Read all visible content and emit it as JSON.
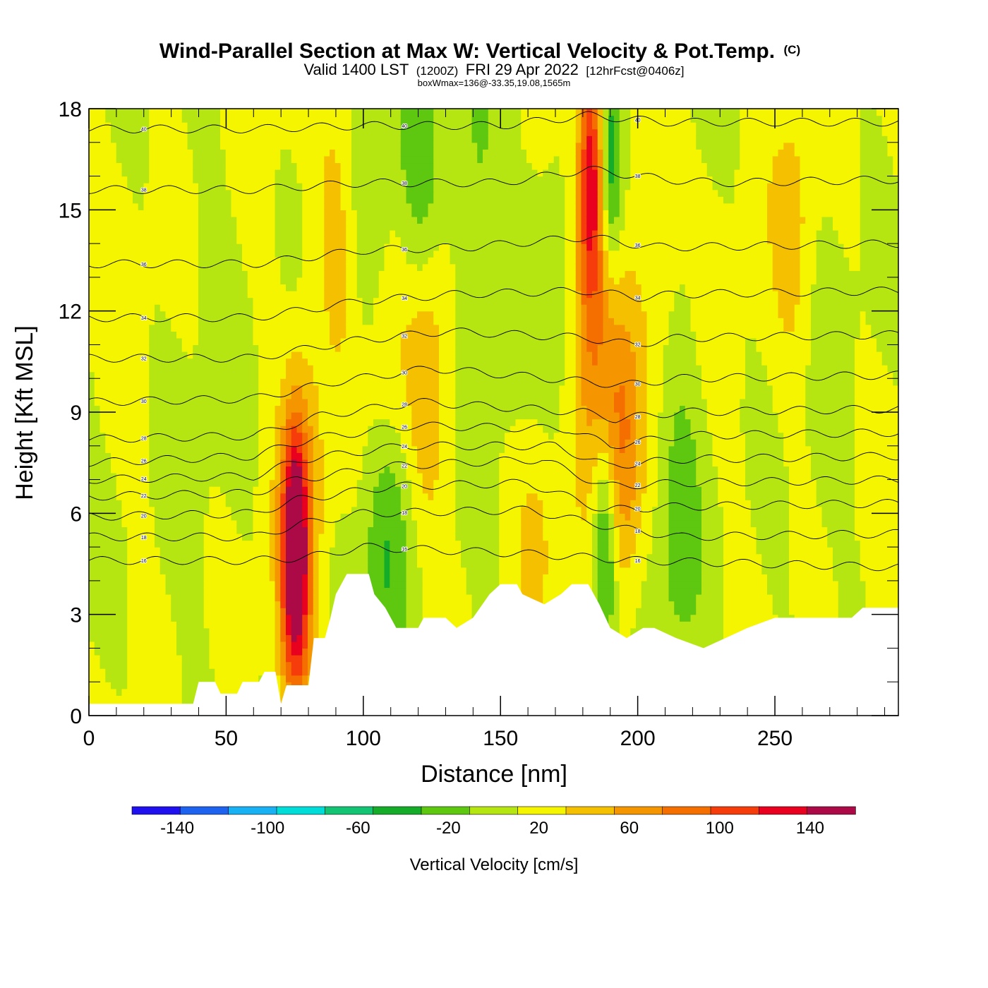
{
  "header": {
    "title": "Wind-Parallel Section at Max W: Vertical Velocity & Pot.Temp.",
    "title_mark": "(C)",
    "valid_prefix": "Valid 1400 LST",
    "valid_utc": "(1200Z)",
    "valid_date": "FRI 29 Apr 2022",
    "forecast": "[12hrFcst@0406z]",
    "box_wmax": "boxWmax=136@-33.35,19.08,1565m"
  },
  "chart_data": {
    "type": "heatmap",
    "xlabel": "Distance [nm]",
    "ylabel": "Height [Kft MSL]",
    "xlim": [
      0,
      295
    ],
    "ylim": [
      0,
      18
    ],
    "x_ticks": [
      "0",
      "50",
      "100",
      "150",
      "200",
      "250"
    ],
    "y_ticks": [
      "0",
      "3",
      "6",
      "9",
      "12",
      "15",
      "18"
    ],
    "colorbar": {
      "title": "Vertical Velocity [cm/s]",
      "boundaries": [
        -160,
        -140,
        -120,
        -100,
        -80,
        -60,
        -40,
        -20,
        0,
        20,
        40,
        60,
        80,
        100,
        120,
        140,
        160
      ],
      "labels": [
        "-140",
        "-100",
        "-60",
        "-20",
        "20",
        "60",
        "100",
        "140"
      ],
      "colors": [
        "#1f10f0",
        "#1e63f0",
        "#17b1f4",
        "#00dcd8",
        "#12c473",
        "#14ac28",
        "#5ec70f",
        "#b6e612",
        "#f5f500",
        "#f5c000",
        "#f59600",
        "#f56e00",
        "#f53c0a",
        "#e8001e",
        "#ab0a46"
      ]
    },
    "terrain_profile": [
      [
        0,
        0.35
      ],
      [
        38,
        0.35
      ],
      [
        40,
        1.0
      ],
      [
        46,
        1.0
      ],
      [
        48,
        0.65
      ],
      [
        54,
        0.65
      ],
      [
        56,
        1.0
      ],
      [
        62,
        1.0
      ],
      [
        64,
        1.3
      ],
      [
        68,
        1.3
      ],
      [
        70,
        0.35
      ],
      [
        72,
        0.9
      ],
      [
        80,
        0.9
      ],
      [
        82,
        2.3
      ],
      [
        86,
        2.3
      ],
      [
        88,
        2.9
      ],
      [
        90,
        3.6
      ],
      [
        94,
        4.2
      ],
      [
        102,
        4.2
      ],
      [
        104,
        3.6
      ],
      [
        108,
        3.2
      ],
      [
        112,
        2.6
      ],
      [
        120,
        2.6
      ],
      [
        122,
        2.9
      ],
      [
        130,
        2.9
      ],
      [
        134,
        2.6
      ],
      [
        140,
        2.9
      ],
      [
        146,
        3.6
      ],
      [
        150,
        3.9
      ],
      [
        156,
        3.9
      ],
      [
        158,
        3.6
      ],
      [
        166,
        3.3
      ],
      [
        172,
        3.6
      ],
      [
        176,
        3.9
      ],
      [
        182,
        3.9
      ],
      [
        186,
        3.3
      ],
      [
        190,
        2.6
      ],
      [
        196,
        2.3
      ],
      [
        202,
        2.6
      ],
      [
        206,
        2.6
      ],
      [
        214,
        2.3
      ],
      [
        224,
        2.0
      ],
      [
        232,
        2.3
      ],
      [
        240,
        2.6
      ],
      [
        250,
        2.9
      ],
      [
        278,
        2.9
      ],
      [
        282,
        3.2
      ],
      [
        295,
        3.2
      ]
    ],
    "w_features": [
      {
        "x": 75,
        "z": 5.0,
        "w": 136
      },
      {
        "x": 76,
        "z": 2.5,
        "w": 40
      },
      {
        "x": 79,
        "z": 7.5,
        "w": 28
      },
      {
        "x": 91,
        "z": 14.8,
        "w": 30
      },
      {
        "x": 108,
        "z": 11.0,
        "w": 36
      },
      {
        "x": 123,
        "z": 10.0,
        "w": 30
      },
      {
        "x": 163,
        "z": 5.8,
        "w": 30
      },
      {
        "x": 183,
        "z": 16.0,
        "w": 100
      },
      {
        "x": 184,
        "z": 12.0,
        "w": 55
      },
      {
        "x": 194,
        "z": 8.0,
        "w": 60
      },
      {
        "x": 208,
        "z": 16.0,
        "w": 30
      },
      {
        "x": 257,
        "z": 14.5,
        "w": 28
      },
      {
        "x": 190,
        "z": 16.5,
        "w": -70
      },
      {
        "x": 188,
        "z": 5.0,
        "w": -70
      },
      {
        "x": 108,
        "z": 5.0,
        "w": -40
      },
      {
        "x": 120,
        "z": 16.0,
        "w": -40
      },
      {
        "x": 141,
        "z": 16.5,
        "w": -28
      },
      {
        "x": 105,
        "z": 14.0,
        "w": -22
      },
      {
        "x": 215,
        "z": 6.0,
        "w": -26
      },
      {
        "x": 168,
        "z": 12.0,
        "w": -20
      }
    ],
    "theta_isentropes": [
      {
        "label": "16",
        "levels": [
          [
            0,
            4.6
          ],
          [
            60,
            4.6
          ],
          [
            80,
            4.7
          ],
          [
            100,
            5.0
          ],
          [
            160,
            4.8
          ],
          [
            200,
            4.6
          ],
          [
            295,
            4.4
          ]
        ]
      },
      {
        "label": "18",
        "levels": [
          [
            0,
            5.3
          ],
          [
            60,
            5.3
          ],
          [
            78,
            5.7
          ],
          [
            100,
            6.0
          ],
          [
            160,
            6.1
          ],
          [
            190,
            5.6
          ],
          [
            215,
            5.3
          ],
          [
            295,
            5.4
          ]
        ]
      },
      {
        "label": "20",
        "levels": [
          [
            0,
            5.9
          ],
          [
            60,
            6.0
          ],
          [
            76,
            6.4
          ],
          [
            110,
            6.8
          ],
          [
            160,
            6.9
          ],
          [
            188,
            6.1
          ],
          [
            215,
            6.2
          ],
          [
            295,
            6.3
          ]
        ]
      },
      {
        "label": "22",
        "levels": [
          [
            0,
            6.5
          ],
          [
            60,
            6.6
          ],
          [
            76,
            7.0
          ],
          [
            110,
            7.4
          ],
          [
            165,
            7.6
          ],
          [
            188,
            6.8
          ],
          [
            215,
            6.9
          ],
          [
            295,
            7.0
          ]
        ]
      },
      {
        "label": "24",
        "levels": [
          [
            0,
            7.0
          ],
          [
            60,
            7.1
          ],
          [
            78,
            7.6
          ],
          [
            115,
            8.0
          ],
          [
            170,
            8.0
          ],
          [
            189,
            7.4
          ],
          [
            215,
            7.6
          ],
          [
            295,
            7.7
          ]
        ]
      },
      {
        "label": "26",
        "levels": [
          [
            0,
            7.5
          ],
          [
            60,
            7.7
          ],
          [
            80,
            8.2
          ],
          [
            118,
            8.6
          ],
          [
            175,
            8.5
          ],
          [
            190,
            8.0
          ],
          [
            215,
            8.3
          ],
          [
            295,
            8.4
          ]
        ]
      },
      {
        "label": "28",
        "levels": [
          [
            0,
            8.2
          ],
          [
            60,
            8.3
          ],
          [
            85,
            8.9
          ],
          [
            120,
            9.3
          ],
          [
            180,
            9.0
          ],
          [
            192,
            8.8
          ],
          [
            215,
            9.0
          ],
          [
            295,
            9.1
          ]
        ]
      },
      {
        "label": "30",
        "levels": [
          [
            0,
            9.3
          ],
          [
            60,
            9.4
          ],
          [
            90,
            9.9
          ],
          [
            125,
            10.3
          ],
          [
            182,
            9.9
          ],
          [
            195,
            9.8
          ],
          [
            215,
            10.0
          ],
          [
            295,
            10.1
          ]
        ]
      },
      {
        "label": "32",
        "levels": [
          [
            0,
            10.6
          ],
          [
            60,
            10.6
          ],
          [
            95,
            11.1
          ],
          [
            130,
            11.4
          ],
          [
            182,
            11.2
          ],
          [
            198,
            11.0
          ],
          [
            215,
            11.2
          ],
          [
            295,
            11.3
          ]
        ]
      },
      {
        "label": "34",
        "levels": [
          [
            0,
            11.8
          ],
          [
            60,
            11.8
          ],
          [
            100,
            12.3
          ],
          [
            135,
            12.5
          ],
          [
            182,
            12.6
          ],
          [
            200,
            12.4
          ],
          [
            215,
            12.5
          ],
          [
            295,
            12.6
          ]
        ]
      },
      {
        "label": "36",
        "levels": [
          [
            0,
            13.4
          ],
          [
            60,
            13.4
          ],
          [
            100,
            13.8
          ],
          [
            140,
            13.9
          ],
          [
            182,
            14.2
          ],
          [
            205,
            13.9
          ],
          [
            220,
            13.9
          ],
          [
            295,
            14.0
          ]
        ]
      },
      {
        "label": "38",
        "levels": [
          [
            0,
            15.6
          ],
          [
            60,
            15.6
          ],
          [
            100,
            15.8
          ],
          [
            150,
            15.8
          ],
          [
            182,
            16.2
          ],
          [
            210,
            15.9
          ],
          [
            230,
            15.8
          ],
          [
            295,
            15.9
          ]
        ]
      },
      {
        "label": "40",
        "levels": [
          [
            0,
            17.4
          ],
          [
            60,
            17.4
          ],
          [
            100,
            17.5
          ],
          [
            150,
            17.5
          ],
          [
            182,
            17.8
          ],
          [
            210,
            17.6
          ],
          [
            295,
            17.6
          ]
        ]
      }
    ]
  }
}
